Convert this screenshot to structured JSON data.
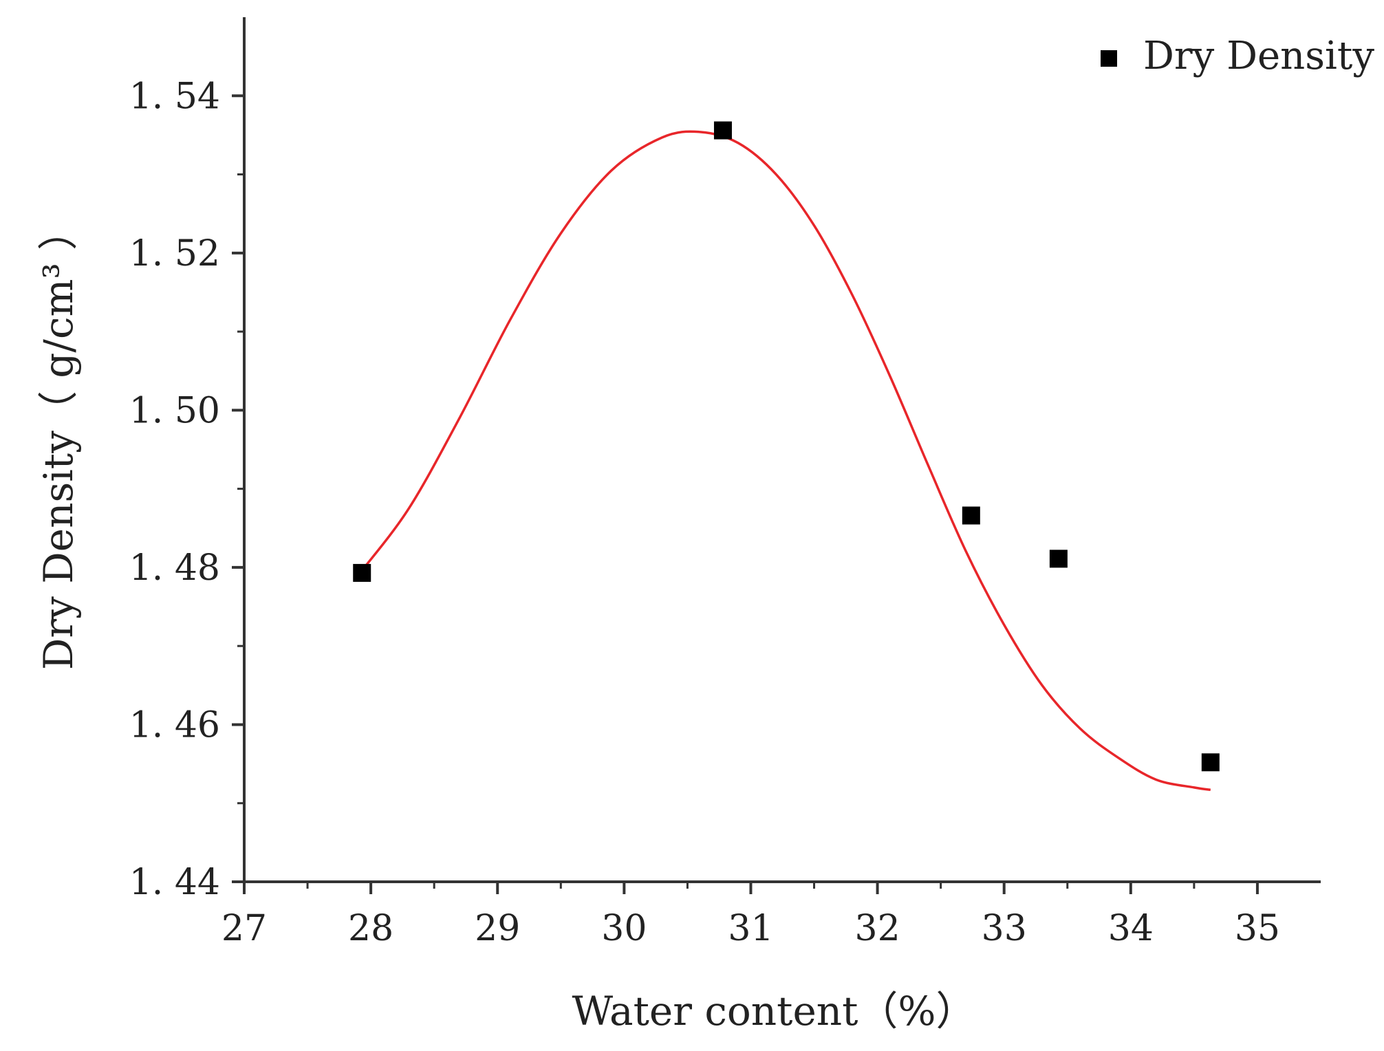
{
  "chart_data": {
    "type": "scatter",
    "title": "",
    "xlabel": "Water content（%）",
    "ylabel": "Dry Density（ g/cm³ ）",
    "xlim": [
      27,
      35.5
    ],
    "ylim": [
      1.44,
      1.55
    ],
    "x_ticks": [
      27,
      28,
      29,
      30,
      31,
      32,
      33,
      34,
      35
    ],
    "x_tick_labels": [
      "27",
      "28",
      "29",
      "30",
      "31",
      "32",
      "33",
      "34",
      "35"
    ],
    "y_ticks": [
      1.44,
      1.46,
      1.48,
      1.5,
      1.52,
      1.54
    ],
    "y_tick_labels": [
      "1. 44",
      "1. 46",
      "1. 48",
      "1. 50",
      "1. 52",
      "1. 54"
    ],
    "grid": false,
    "legend_position": "top-right",
    "series": [
      {
        "name": "Dry Density",
        "marker": "square",
        "color": "#000000",
        "x": [
          27.93,
          30.78,
          32.74,
          33.43,
          34.63
        ],
        "y": [
          1.4793,
          1.5356,
          1.4866,
          1.4811,
          1.4552
        ]
      }
    ],
    "fit_curve": {
      "color": "#e8262a",
      "x": [
        27.93,
        28.3,
        28.7,
        29.1,
        29.5,
        29.9,
        30.3,
        30.6,
        30.9,
        31.2,
        31.5,
        31.8,
        32.1,
        32.4,
        32.7,
        33.0,
        33.3,
        33.6,
        33.9,
        34.2,
        34.5,
        34.63
      ],
      "y": [
        1.4796,
        1.4875,
        1.499,
        1.5115,
        1.5225,
        1.5305,
        1.5347,
        1.5354,
        1.534,
        1.53,
        1.5235,
        1.5147,
        1.5043,
        1.493,
        1.482,
        1.4727,
        1.465,
        1.4595,
        1.4558,
        1.453,
        1.452,
        1.4517
      ]
    }
  }
}
